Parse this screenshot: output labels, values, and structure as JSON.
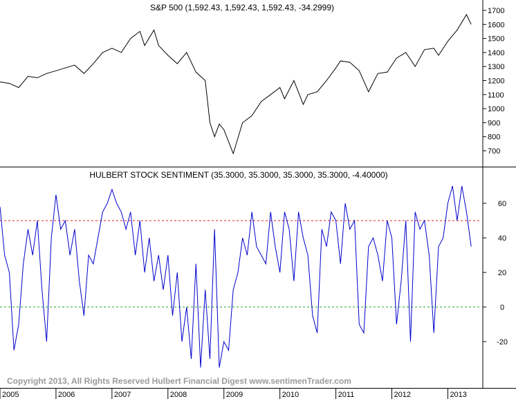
{
  "chart_data": [
    {
      "type": "line",
      "title": "S&P 500 (1,592.43, 1,592.43, 1,592.43, -34.2999)",
      "ylim": [
        600,
        1750
      ],
      "y_ticks": [
        "700",
        "800",
        "900",
        "1000",
        "1100",
        "1200",
        "1300",
        "1400",
        "1500",
        "1600",
        "1700"
      ],
      "x": [
        "2005-01",
        "2005-03",
        "2005-05",
        "2005-07",
        "2005-09",
        "2005-11",
        "2006-01",
        "2006-03",
        "2006-05",
        "2006-07",
        "2006-09",
        "2006-11",
        "2007-01",
        "2007-03",
        "2007-05",
        "2007-07",
        "2007-08",
        "2007-10",
        "2007-11",
        "2008-01",
        "2008-03",
        "2008-05",
        "2008-07",
        "2008-09",
        "2008-10",
        "2008-11",
        "2008-12",
        "2009-01",
        "2009-03",
        "2009-05",
        "2009-07",
        "2009-09",
        "2009-11",
        "2010-01",
        "2010-02",
        "2010-04",
        "2010-06",
        "2010-07",
        "2010-09",
        "2010-11",
        "2011-01",
        "2011-02",
        "2011-04",
        "2011-06",
        "2011-08",
        "2011-10",
        "2011-12",
        "2012-02",
        "2012-04",
        "2012-06",
        "2012-08",
        "2012-10",
        "2012-11",
        "2013-01",
        "2013-03",
        "2013-05",
        "2013-06"
      ],
      "values": [
        1190,
        1180,
        1150,
        1230,
        1220,
        1250,
        1270,
        1290,
        1310,
        1250,
        1320,
        1400,
        1430,
        1400,
        1500,
        1550,
        1450,
        1560,
        1450,
        1380,
        1320,
        1400,
        1260,
        1200,
        900,
        800,
        890,
        850,
        680,
        900,
        950,
        1050,
        1100,
        1150,
        1070,
        1200,
        1030,
        1100,
        1120,
        1200,
        1290,
        1340,
        1330,
        1270,
        1120,
        1250,
        1260,
        1360,
        1400,
        1300,
        1420,
        1430,
        1380,
        1480,
        1560,
        1670,
        1600
      ],
      "series": [
        {
          "values_ref": "values"
        }
      ]
    },
    {
      "type": "line",
      "title": "HULBERT STOCK SENTIMENT (35.3000, 35.3000, 35.3000, 35.3000, -4.40000)",
      "ylim": [
        -38,
        76
      ],
      "y_ticks": [
        "-20",
        "0",
        "20",
        "40",
        "60"
      ],
      "reference_lines": [
        {
          "value": 50,
          "color": "#e02020",
          "style": "dashed"
        },
        {
          "value": 0,
          "color": "#20a020",
          "style": "dashed"
        }
      ],
      "x": [
        "2005-01",
        "2005-02",
        "2005-03",
        "2005-04",
        "2005-05",
        "2005-06",
        "2005-07",
        "2005-08",
        "2005-09",
        "2005-10",
        "2005-11",
        "2005-12",
        "2006-01",
        "2006-02",
        "2006-03",
        "2006-04",
        "2006-05",
        "2006-06",
        "2006-07",
        "2006-08",
        "2006-09",
        "2006-10",
        "2006-11",
        "2006-12",
        "2007-01",
        "2007-02",
        "2007-03",
        "2007-04",
        "2007-05",
        "2007-06",
        "2007-07",
        "2007-08",
        "2007-09",
        "2007-10",
        "2007-11",
        "2007-12",
        "2008-01",
        "2008-02",
        "2008-03",
        "2008-04",
        "2008-05",
        "2008-06",
        "2008-07",
        "2008-08",
        "2008-09",
        "2008-10",
        "2008-11",
        "2008-12",
        "2009-01",
        "2009-02",
        "2009-03",
        "2009-04",
        "2009-05",
        "2009-06",
        "2009-07",
        "2009-08",
        "2009-09",
        "2009-10",
        "2009-11",
        "2009-12",
        "2010-01",
        "2010-02",
        "2010-03",
        "2010-04",
        "2010-05",
        "2010-06",
        "2010-07",
        "2010-08",
        "2010-09",
        "2010-10",
        "2010-11",
        "2010-12",
        "2011-01",
        "2011-02",
        "2011-03",
        "2011-04",
        "2011-05",
        "2011-06",
        "2011-07",
        "2011-08",
        "2011-09",
        "2011-10",
        "2011-11",
        "2011-12",
        "2012-01",
        "2012-02",
        "2012-03",
        "2012-04",
        "2012-05",
        "2012-06",
        "2012-07",
        "2012-08",
        "2012-09",
        "2012-10",
        "2012-11",
        "2012-12",
        "2013-01",
        "2013-02",
        "2013-03",
        "2013-04",
        "2013-05",
        "2013-06"
      ],
      "values": [
        58,
        30,
        20,
        -25,
        -10,
        25,
        45,
        30,
        50,
        10,
        -20,
        40,
        65,
        45,
        50,
        30,
        45,
        15,
        -5,
        30,
        25,
        40,
        55,
        60,
        68,
        60,
        55,
        45,
        55,
        30,
        50,
        20,
        40,
        15,
        30,
        10,
        30,
        -5,
        20,
        -20,
        0,
        -30,
        25,
        -35,
        10,
        -30,
        45,
        -35,
        -20,
        -25,
        10,
        20,
        40,
        30,
        55,
        35,
        30,
        25,
        55,
        35,
        20,
        55,
        45,
        15,
        55,
        40,
        30,
        -5,
        -15,
        45,
        35,
        55,
        50,
        25,
        60,
        45,
        50,
        -10,
        -15,
        35,
        40,
        30,
        15,
        50,
        40,
        -10,
        15,
        50,
        -20,
        55,
        45,
        50,
        30,
        -15,
        35,
        40,
        60,
        70,
        50,
        70,
        55,
        35
      ]
    }
  ],
  "footer": {
    "copyright": "Copyright 2013, All Rights Reserved  Hulbert Financial Digest  www.sentimenTrader.com"
  },
  "x_axis": {
    "year_labels": [
      "2005",
      "2006",
      "2007",
      "2008",
      "2009",
      "2010",
      "2011",
      "2012",
      "2013"
    ]
  },
  "colors": {
    "spx_line": "#000000",
    "sentiment_line": "#0000cc",
    "upper_band": "#e02020",
    "zero_line": "#20a020",
    "copyright_text": "#9a9a9a"
  }
}
